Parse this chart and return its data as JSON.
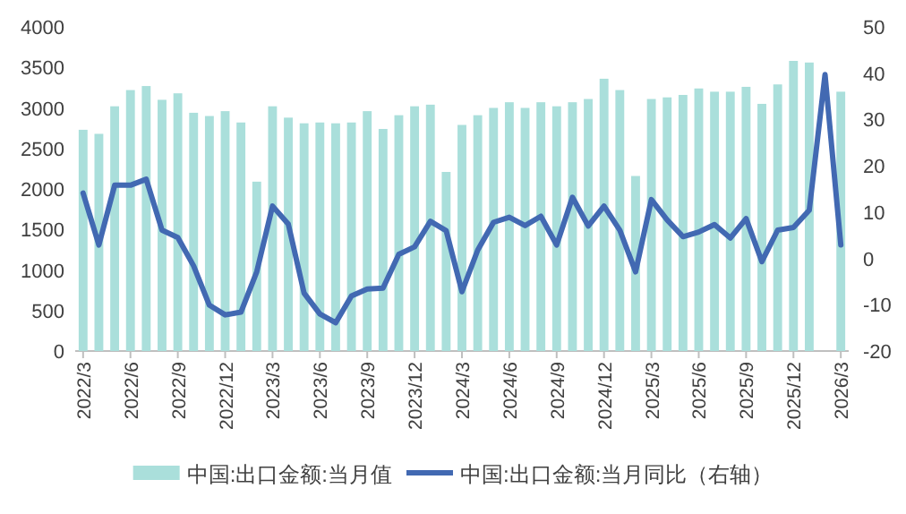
{
  "chart_data": {
    "type": "bar",
    "categories": [
      "2022/3",
      null,
      null,
      "2022/6",
      null,
      null,
      "2022/9",
      null,
      null,
      "2022/12",
      null,
      null,
      "2023/3",
      null,
      null,
      "2023/6",
      null,
      null,
      "2023/9",
      null,
      null,
      "2023/12",
      null,
      null,
      "2024/3",
      null,
      null,
      "2024/6",
      null,
      null,
      "2024/9",
      null,
      null,
      "2024/12",
      null,
      null,
      "2025/3",
      null,
      null,
      "2025/6",
      null,
      null,
      "2025/9",
      null,
      null,
      "2025/12",
      null,
      null,
      "2026/3"
    ],
    "series": [
      {
        "name": "中国:出口金额:当月值",
        "color": "#aadfdb",
        "values": [
          2730,
          2680,
          3020,
          3220,
          3270,
          3100,
          3180,
          2940,
          2900,
          2960,
          2820,
          2090,
          3020,
          2880,
          2810,
          2820,
          2810,
          2820,
          2960,
          2740,
          2910,
          3020,
          3040,
          2210,
          2790,
          2910,
          3000,
          3070,
          3000,
          3070,
          3020,
          3070,
          3110,
          3360,
          3220,
          2160,
          3110,
          3130,
          3160,
          3240,
          3200,
          3200,
          3260,
          3050,
          3290,
          3580,
          3560,
          null,
          3200
        ]
      },
      {
        "name": "中国:出口金额:当月同比（右轴）",
        "type": "line",
        "axis": "y2",
        "color": "#4269b2",
        "values": [
          14.1,
          2.9,
          15.8,
          15.8,
          17.1,
          6.1,
          4.5,
          -1.6,
          -10.1,
          -12.2,
          -11.6,
          -2.9,
          11.3,
          7.4,
          -7.5,
          -12.0,
          -13.9,
          -8.1,
          -6.6,
          -6.4,
          0.9,
          2.5,
          8.0,
          6.0,
          -7.2,
          1.8,
          7.8,
          8.9,
          7.1,
          9.1,
          2.9,
          13.2,
          7.0,
          11.3,
          6.1,
          -2.9,
          12.7,
          8.3,
          4.7,
          5.7,
          7.3,
          4.4,
          8.6,
          -0.7,
          6.1,
          6.7,
          10.4,
          39.7,
          2.9
        ]
      }
    ],
    "ylim": [
      0,
      4000
    ],
    "yticks": [
      0,
      500,
      1000,
      1500,
      2000,
      2500,
      3000,
      3500,
      4000
    ],
    "y2lim": [
      -20,
      50
    ],
    "y2ticks": [
      -20,
      -10,
      0,
      10,
      20,
      30,
      40,
      50
    ],
    "grid": false,
    "legend": "bottom"
  }
}
